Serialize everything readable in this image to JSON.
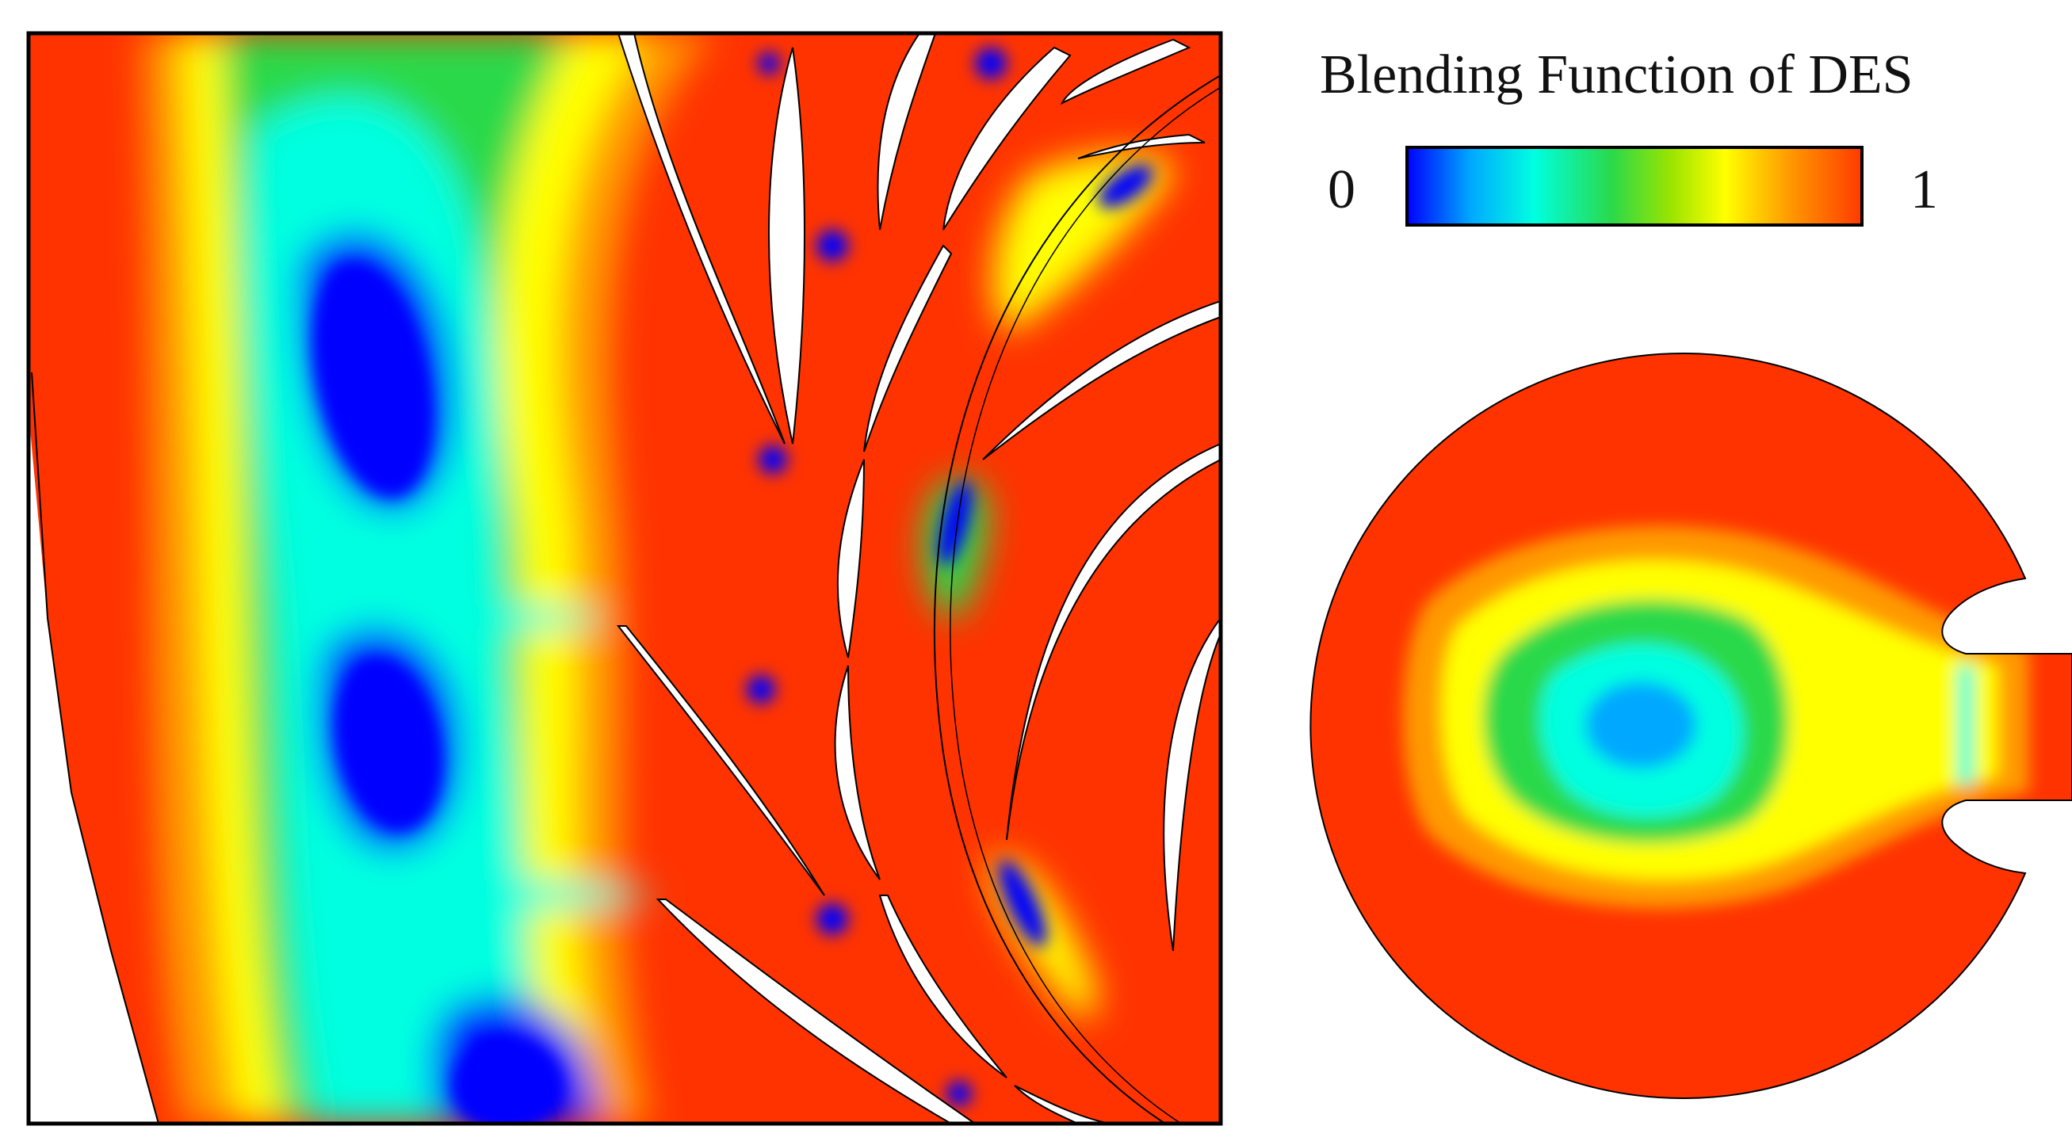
{
  "legend": {
    "title": "Blending Function of DES",
    "min_label": "0",
    "max_label": "1"
  },
  "colormap": [
    "#0000ff",
    "#00a8ff",
    "#00ffe0",
    "#2ad94a",
    "#9be400",
    "#ffff00",
    "#ff9a00",
    "#ff3a00"
  ],
  "colors": {
    "field_base": "#ff3300",
    "blade": "#ffffff",
    "outline": "#000000"
  }
}
